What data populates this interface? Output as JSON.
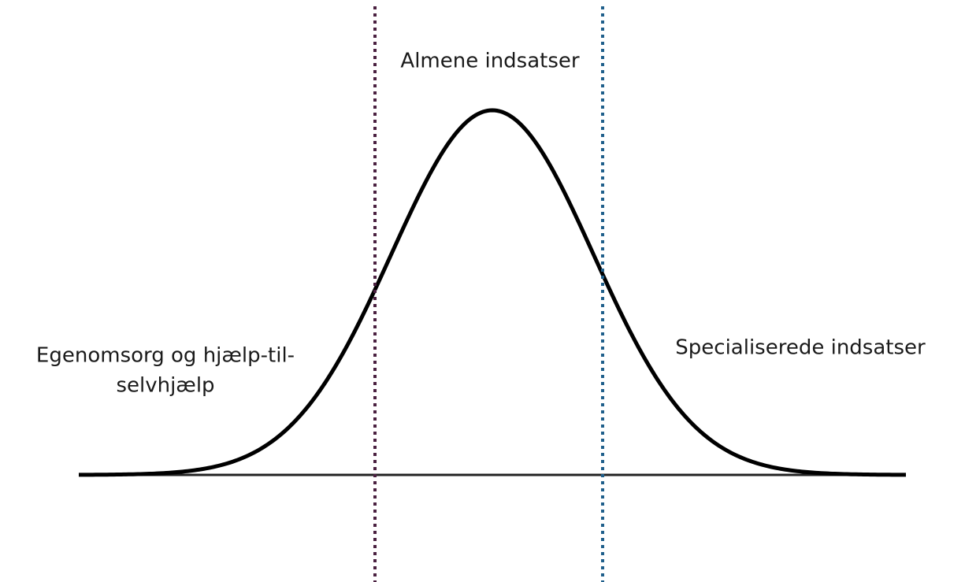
{
  "labels": {
    "top": "Almene indsatser",
    "left": [
      "Egenomsorg og hjælp-til-",
      "selvhjælp"
    ],
    "right": "Specialiserede indsatser"
  }
}
